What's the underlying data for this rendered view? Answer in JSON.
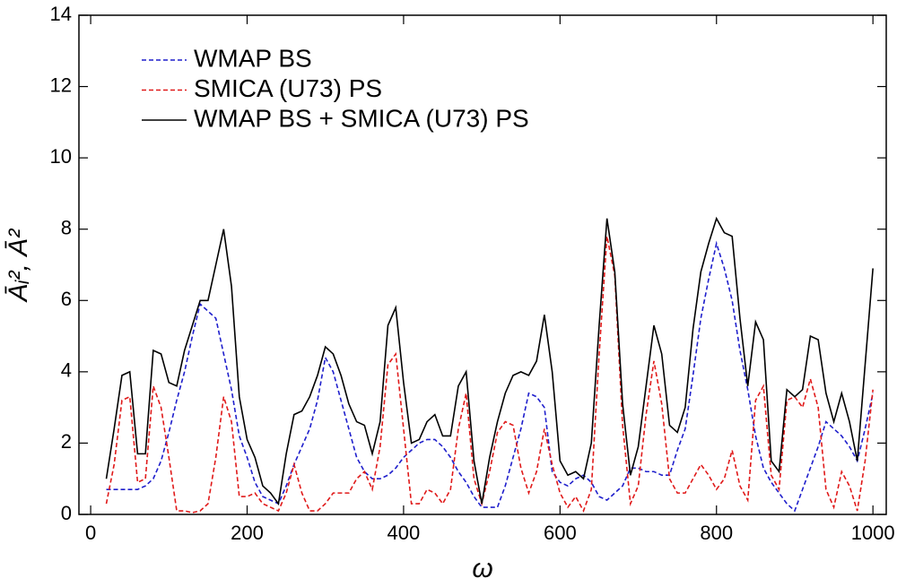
{
  "chart_data": {
    "type": "line",
    "x_label": "ω",
    "y_label": "Āᵢ², Ā²",
    "x": [
      20,
      30,
      40,
      50,
      60,
      70,
      80,
      90,
      100,
      110,
      120,
      130,
      140,
      150,
      160,
      170,
      180,
      190,
      200,
      210,
      220,
      230,
      240,
      250,
      260,
      270,
      280,
      290,
      300,
      310,
      320,
      330,
      340,
      350,
      360,
      370,
      380,
      390,
      400,
      410,
      420,
      430,
      440,
      450,
      460,
      470,
      480,
      490,
      500,
      510,
      520,
      530,
      540,
      550,
      560,
      570,
      580,
      590,
      600,
      610,
      620,
      630,
      640,
      650,
      660,
      670,
      680,
      690,
      700,
      710,
      720,
      730,
      740,
      750,
      760,
      770,
      780,
      790,
      800,
      810,
      820,
      830,
      840,
      850,
      860,
      870,
      880,
      890,
      900,
      910,
      920,
      930,
      940,
      950,
      960,
      970,
      980,
      990,
      1000
    ],
    "series": [
      {
        "name": "WMAP BS",
        "color": "#1f1fcc",
        "dash": true,
        "values": [
          0.7,
          0.7,
          0.7,
          0.7,
          0.7,
          0.8,
          1.0,
          1.5,
          2.3,
          3.2,
          4.0,
          5.0,
          5.9,
          5.7,
          5.5,
          4.5,
          3.5,
          2.2,
          1.6,
          0.9,
          0.5,
          0.4,
          0.3,
          0.8,
          1.4,
          1.9,
          2.4,
          3.2,
          4.4,
          4.0,
          3.2,
          2.4,
          1.6,
          1.2,
          1.0,
          1.0,
          1.1,
          1.3,
          1.6,
          1.8,
          2.0,
          2.1,
          2.1,
          1.9,
          1.6,
          1.2,
          0.9,
          0.5,
          0.2,
          0.2,
          0.2,
          0.8,
          1.6,
          2.4,
          3.4,
          3.3,
          3.0,
          1.2,
          0.9,
          0.8,
          1.0,
          1.1,
          0.9,
          0.5,
          0.4,
          0.6,
          0.8,
          1.3,
          1.3,
          1.2,
          1.2,
          1.1,
          1.1,
          1.8,
          2.4,
          3.9,
          5.5,
          6.6,
          7.6,
          6.9,
          6.0,
          4.6,
          3.5,
          2.2,
          1.3,
          0.9,
          0.6,
          0.3,
          0.1,
          0.7,
          1.3,
          1.9,
          2.6,
          2.4,
          2.2,
          1.9,
          1.5,
          2.4,
          3.4
        ]
      },
      {
        "name": "SMICA (U73) PS",
        "color": "#e01a1a",
        "dash": true,
        "values": [
          0.3,
          1.4,
          3.2,
          3.3,
          0.9,
          1.0,
          3.6,
          3.0,
          1.6,
          0.1,
          0.1,
          0.05,
          0.1,
          0.3,
          1.6,
          3.3,
          2.6,
          0.5,
          0.5,
          0.6,
          0.3,
          0.2,
          0.1,
          0.6,
          1.4,
          0.6,
          0.1,
          0.1,
          0.3,
          0.6,
          0.6,
          0.6,
          1.0,
          1.2,
          0.7,
          1.9,
          4.2,
          4.5,
          2.4,
          0.3,
          0.3,
          0.7,
          0.6,
          0.3,
          0.7,
          2.4,
          3.4,
          1.0,
          0.3,
          1.2,
          2.3,
          2.6,
          2.5,
          1.3,
          0.6,
          1.2,
          2.4,
          1.4,
          0.6,
          0.2,
          0.5,
          0.1,
          0.7,
          4.5,
          7.8,
          6.7,
          2.5,
          0.3,
          0.8,
          2.8,
          4.3,
          3.1,
          1.0,
          0.6,
          0.6,
          1.0,
          1.4,
          1.1,
          0.7,
          1.0,
          1.8,
          0.8,
          0.4,
          3.2,
          3.6,
          1.1,
          0.7,
          3.2,
          3.3,
          3.0,
          3.8,
          3.0,
          0.7,
          0.2,
          1.2,
          0.8,
          0.1,
          1.5,
          3.5
        ]
      },
      {
        "name": "WMAP BS + SMICA (U73) PS",
        "color": "#000000",
        "dash": false,
        "values": [
          1.0,
          2.4,
          3.9,
          4.0,
          1.7,
          1.7,
          4.6,
          4.5,
          3.7,
          3.6,
          4.6,
          5.3,
          6.0,
          6.0,
          7.0,
          8.0,
          6.4,
          3.3,
          2.1,
          1.6,
          0.8,
          0.6,
          0.3,
          1.7,
          2.8,
          2.9,
          3.3,
          3.9,
          4.7,
          4.5,
          3.9,
          3.1,
          2.6,
          2.5,
          1.7,
          2.6,
          5.3,
          5.8,
          3.7,
          2.0,
          2.1,
          2.6,
          2.8,
          2.2,
          2.2,
          3.6,
          4.0,
          1.5,
          0.3,
          1.6,
          2.6,
          3.4,
          3.9,
          4.0,
          3.9,
          4.3,
          5.6,
          4.0,
          1.5,
          1.1,
          1.2,
          1.0,
          2.0,
          5.3,
          8.3,
          6.8,
          3.1,
          1.1,
          1.9,
          3.6,
          5.3,
          4.5,
          2.5,
          2.3,
          3.0,
          5.2,
          6.8,
          7.6,
          8.3,
          7.9,
          7.8,
          5.5,
          3.6,
          5.4,
          4.9,
          1.5,
          1.2,
          3.5,
          3.3,
          3.5,
          5.0,
          4.9,
          3.4,
          2.6,
          3.4,
          2.6,
          1.5,
          4.2,
          6.9
        ]
      }
    ],
    "xlim": [
      -15,
      1017
    ],
    "xticks": [
      0,
      200,
      400,
      600,
      800,
      1000
    ],
    "ylim": [
      0,
      14
    ],
    "yticks": [
      0,
      2,
      4,
      6,
      8,
      10,
      12,
      14
    ],
    "legend": "upper left",
    "grid": false
  }
}
